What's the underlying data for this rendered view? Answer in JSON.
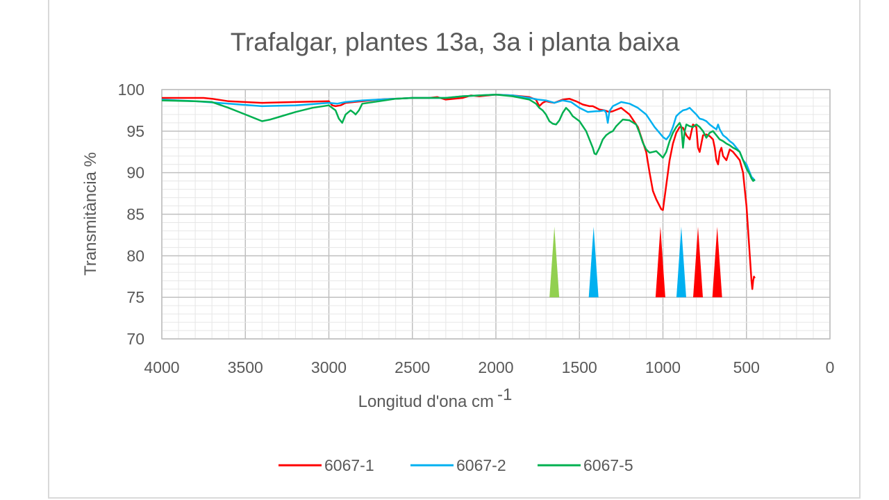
{
  "chart_data": {
    "type": "line",
    "title": "Trafalgar, plantes 13a, 3a i planta baixa",
    "xlabel": "Longitud d'ona cm",
    "xlabel_superscript": "-1",
    "ylabel": "Transmitància %",
    "xlim": [
      4000,
      0
    ],
    "ylim": [
      70,
      100
    ],
    "x_ticks": [
      "4000",
      "3500",
      "3000",
      "2500",
      "2000",
      "1500",
      "1000",
      "500",
      "0"
    ],
    "y_ticks": [
      "100",
      "95",
      "90",
      "85",
      "80",
      "75",
      "70"
    ],
    "grid": true,
    "legend_position": "bottom",
    "series": [
      {
        "name": "6067-1",
        "color": "#ff0000",
        "x": [
          4000,
          3750,
          3700,
          3600,
          3400,
          3200,
          3000,
          2980,
          2960,
          2930,
          2900,
          2850,
          2800,
          2700,
          2500,
          2400,
          2350,
          2300,
          2200,
          2150,
          2100,
          2000,
          1900,
          1800,
          1760,
          1740,
          1720,
          1700,
          1680,
          1650,
          1600,
          1560,
          1520,
          1480,
          1440,
          1420,
          1400,
          1380,
          1350,
          1320,
          1300,
          1250,
          1200,
          1150,
          1100,
          1080,
          1060,
          1040,
          1020,
          1010,
          1000,
          980,
          960,
          940,
          920,
          900,
          880,
          860,
          840,
          820,
          800,
          790,
          780,
          760,
          740,
          720,
          700,
          690,
          680,
          670,
          660,
          650,
          640,
          620,
          600,
          580,
          560,
          540,
          520,
          510,
          500,
          490,
          480,
          470,
          465,
          460,
          455,
          450
        ],
        "y": [
          99.0,
          99.0,
          98.9,
          98.6,
          98.4,
          98.5,
          98.6,
          98.1,
          98.0,
          98.1,
          98.4,
          98.5,
          98.6,
          98.8,
          99.0,
          99.0,
          99.1,
          98.8,
          99.0,
          99.3,
          99.2,
          99.4,
          99.3,
          99.1,
          98.8,
          98.0,
          98.4,
          98.6,
          98.5,
          98.4,
          98.8,
          98.9,
          98.6,
          98.2,
          98.0,
          98.0,
          97.8,
          97.6,
          97.5,
          97.3,
          97.4,
          97.8,
          97.0,
          95.5,
          92.5,
          90.0,
          87.8,
          86.8,
          86.0,
          85.6,
          85.5,
          88.5,
          91.5,
          93.5,
          94.8,
          95.5,
          95.4,
          94.5,
          94.0,
          95.8,
          95.5,
          93.0,
          92.5,
          94.5,
          94.6,
          94.4,
          94.0,
          93.0,
          91.5,
          91.0,
          92.5,
          93.0,
          92.0,
          91.5,
          92.8,
          92.5,
          92.0,
          91.5,
          90.0,
          88.0,
          86.0,
          83.0,
          80.0,
          77.0,
          76.0,
          77.0,
          77.5,
          77.3
        ]
      },
      {
        "name": "6067-2",
        "color": "#00b0f0",
        "x": [
          4000,
          3800,
          3600,
          3400,
          3200,
          3000,
          2950,
          2900,
          2850,
          2800,
          2700,
          2500,
          2300,
          2200,
          2100,
          2000,
          1900,
          1800,
          1750,
          1700,
          1650,
          1600,
          1550,
          1500,
          1450,
          1400,
          1380,
          1350,
          1340,
          1330,
          1320,
          1300,
          1250,
          1200,
          1150,
          1100,
          1050,
          1000,
          980,
          960,
          940,
          920,
          900,
          880,
          860,
          840,
          820,
          800,
          780,
          760,
          740,
          720,
          700,
          680,
          670,
          660,
          640,
          620,
          600,
          580,
          560,
          540,
          520,
          500,
          480,
          470,
          460,
          450
        ],
        "y": [
          98.8,
          98.6,
          98.3,
          98.0,
          98.1,
          98.4,
          98.3,
          98.5,
          98.6,
          98.7,
          98.8,
          99.0,
          99.0,
          99.2,
          99.3,
          99.4,
          99.3,
          99.0,
          98.8,
          98.7,
          98.4,
          98.7,
          98.5,
          97.8,
          97.3,
          97.4,
          97.4,
          97.5,
          97.2,
          96.0,
          97.4,
          98.0,
          98.5,
          98.3,
          97.8,
          97.0,
          95.5,
          94.3,
          94.0,
          94.5,
          95.5,
          96.8,
          97.2,
          97.5,
          97.6,
          97.8,
          97.4,
          97.0,
          96.5,
          96.4,
          96.2,
          95.8,
          95.5,
          95.2,
          95.8,
          95.2,
          94.5,
          94.2,
          93.8,
          93.5,
          93.0,
          92.5,
          91.5,
          91.0,
          90.0,
          89.5,
          89.3,
          89.0
        ]
      },
      {
        "name": "6067-5",
        "color": "#00b050",
        "x": [
          4000,
          3800,
          3700,
          3600,
          3500,
          3450,
          3400,
          3350,
          3300,
          3200,
          3100,
          3000,
          2960,
          2940,
          2920,
          2900,
          2870,
          2850,
          2840,
          2820,
          2800,
          2700,
          2600,
          2500,
          2400,
          2300,
          2200,
          2100,
          2000,
          1900,
          1800,
          1760,
          1740,
          1720,
          1700,
          1680,
          1660,
          1640,
          1620,
          1600,
          1580,
          1560,
          1540,
          1500,
          1460,
          1440,
          1420,
          1410,
          1400,
          1380,
          1360,
          1340,
          1320,
          1300,
          1280,
          1260,
          1240,
          1200,
          1160,
          1140,
          1120,
          1100,
          1080,
          1060,
          1040,
          1020,
          1000,
          980,
          960,
          940,
          920,
          900,
          890,
          880,
          870,
          860,
          840,
          820,
          800,
          780,
          760,
          740,
          720,
          700,
          680,
          660,
          640,
          620,
          600,
          580,
          560,
          540,
          520,
          500,
          480,
          470,
          460,
          450
        ],
        "y": [
          98.7,
          98.6,
          98.5,
          97.8,
          97.0,
          96.6,
          96.2,
          96.4,
          96.7,
          97.3,
          97.8,
          98.1,
          97.5,
          96.5,
          96.0,
          97.0,
          97.5,
          97.2,
          97.0,
          97.5,
          98.3,
          98.6,
          98.9,
          99.0,
          99.0,
          99.0,
          99.2,
          99.3,
          99.4,
          99.2,
          98.8,
          98.3,
          97.8,
          97.5,
          97.0,
          96.2,
          95.9,
          95.8,
          96.3,
          97.2,
          97.8,
          97.4,
          96.8,
          96.2,
          95.0,
          94.0,
          93.0,
          92.3,
          92.2,
          93.0,
          94.0,
          94.5,
          94.8,
          95.0,
          95.6,
          96.0,
          96.4,
          96.3,
          95.8,
          94.8,
          93.6,
          92.8,
          92.4,
          92.5,
          92.6,
          92.2,
          91.8,
          92.5,
          93.8,
          94.8,
          95.5,
          96.0,
          95.5,
          93.0,
          95.0,
          95.8,
          95.6,
          95.5,
          95.8,
          95.5,
          95.0,
          94.2,
          94.8,
          95.0,
          94.5,
          94.0,
          93.8,
          93.5,
          93.3,
          93.0,
          92.8,
          92.5,
          91.5,
          90.5,
          89.8,
          89.3,
          89.0,
          89.2
        ]
      }
    ],
    "peak_markers": [
      {
        "x": 1650,
        "color": "#92d050"
      },
      {
        "x": 1415,
        "color": "#00b0f0"
      },
      {
        "x": 1015,
        "color": "#ff0000"
      },
      {
        "x": 890,
        "color": "#00b0f0"
      },
      {
        "x": 790,
        "color": "#ff0000"
      },
      {
        "x": 675,
        "color": "#ff0000"
      }
    ],
    "peak_marker_range": [
      75,
      83.5
    ]
  }
}
